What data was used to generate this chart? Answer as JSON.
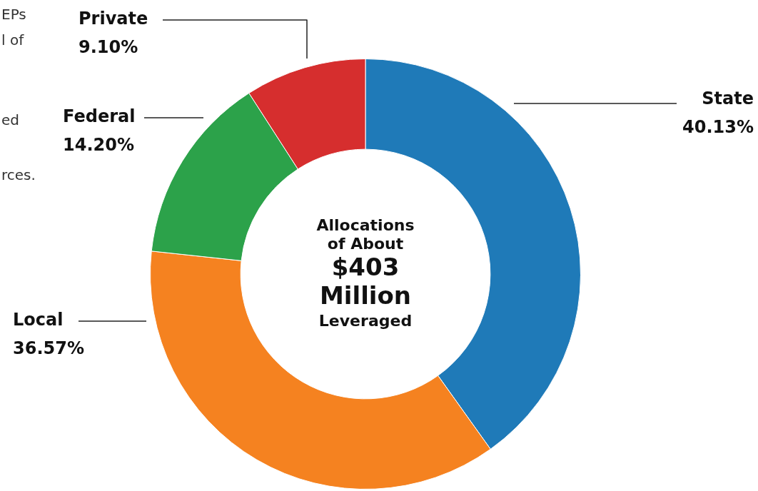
{
  "chart_data": {
    "type": "donut",
    "title": "Allocations\nof About\n$403\nMillion\nLeveraged",
    "categories": [
      "State",
      "Local",
      "Federal",
      "Private"
    ],
    "values": [
      40.13,
      36.57,
      14.2,
      9.1
    ],
    "value_labels": [
      "40.13%",
      "36.57%",
      "14.20%",
      "9.10%"
    ],
    "colors": [
      "#1f7ab8",
      "#f58220",
      "#2ca24a",
      "#d62e2e"
    ],
    "legend": false,
    "annotations": [
      "EPs",
      "l of",
      "ed",
      "rces."
    ]
  }
}
